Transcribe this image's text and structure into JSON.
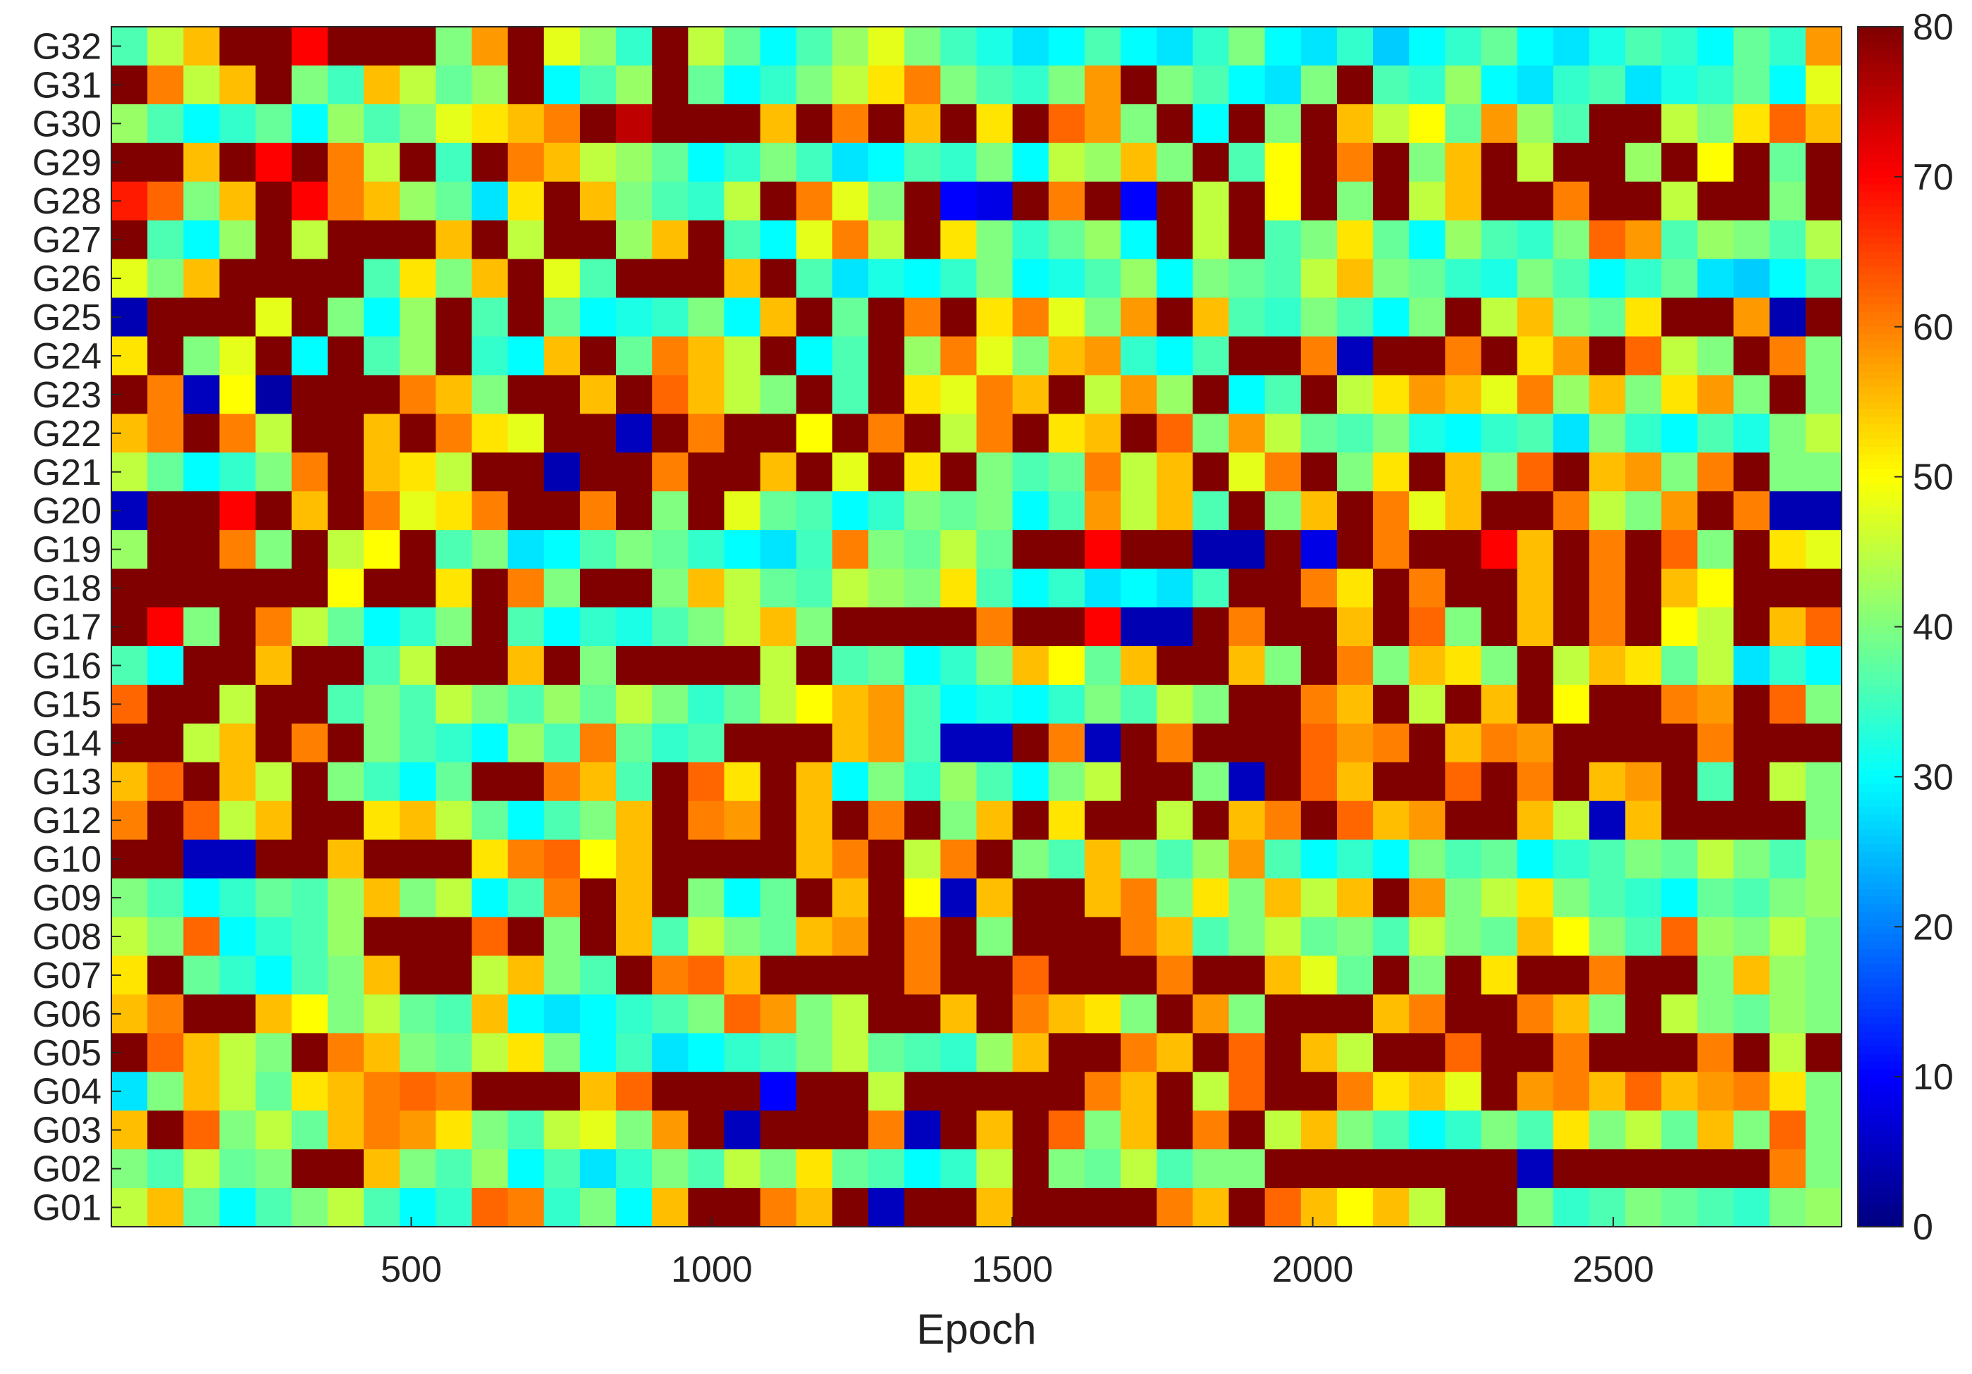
{
  "chart_data": {
    "type": "heatmap",
    "title": "",
    "xlabel": "Epoch",
    "ylabel": "",
    "xlim": [
      1,
      2880
    ],
    "x_ticks": [
      500,
      1000,
      1500,
      2000,
      2500
    ],
    "x_tick_labels": [
      "500",
      "1000",
      "1500",
      "2000",
      "2500"
    ],
    "rows": [
      "G32",
      "G31",
      "G30",
      "G29",
      "G28",
      "G27",
      "G26",
      "G25",
      "G24",
      "G23",
      "G22",
      "G21",
      "G20",
      "G19",
      "G18",
      "G17",
      "G16",
      "G15",
      "G14",
      "G13",
      "G12",
      "G10",
      "G09",
      "G08",
      "G07",
      "G06",
      "G05",
      "G04",
      "G03",
      "G02",
      "G01"
    ],
    "colorbar": {
      "colormap": "jet",
      "min": 0,
      "max": 80,
      "ticks": [
        0,
        10,
        20,
        30,
        40,
        50,
        60,
        70,
        80
      ],
      "tick_labels": [
        "0",
        "10",
        "20",
        "30",
        "40",
        "50",
        "60",
        "70",
        "80"
      ]
    },
    "value_note": "Elevation-like values per satellite per epoch; cells shown as column segments, values approximate (0 to 80)",
    "segments_per_row": 48,
    "row_values": {
      "G32": [
        36,
        45,
        55,
        80,
        80,
        70,
        80,
        80,
        80,
        40,
        58,
        80,
        48,
        42,
        34,
        80,
        45,
        38,
        30,
        36,
        42,
        48,
        40,
        35,
        32,
        28,
        30,
        36,
        30,
        28,
        34,
        40,
        30,
        28,
        34,
        26,
        30,
        34,
        38,
        30,
        28,
        32,
        36,
        34,
        30,
        38,
        34,
        58
      ],
      "G31": [
        80,
        60,
        45,
        55,
        80,
        40,
        35,
        55,
        45,
        38,
        42,
        80,
        30,
        36,
        42,
        80,
        38,
        30,
        34,
        40,
        45,
        52,
        60,
        40,
        36,
        34,
        40,
        58,
        80,
        40,
        36,
        30,
        28,
        40,
        80,
        36,
        34,
        42,
        30,
        28,
        34,
        36,
        28,
        32,
        34,
        38,
        30,
        48
      ],
      "G30": [
        42,
        36,
        30,
        34,
        38,
        30,
        42,
        36,
        40,
        48,
        52,
        55,
        60,
        80,
        75,
        80,
        80,
        80,
        55,
        80,
        60,
        80,
        55,
        80,
        52,
        80,
        62,
        58,
        40,
        80,
        30,
        80,
        40,
        80,
        55,
        45,
        50,
        38,
        58,
        42,
        36,
        80,
        80,
        45,
        40,
        52,
        62,
        55
      ],
      "G29": [
        80,
        80,
        55,
        80,
        70,
        80,
        60,
        45,
        80,
        35,
        80,
        60,
        55,
        45,
        42,
        38,
        30,
        34,
        40,
        35,
        28,
        30,
        36,
        34,
        40,
        30,
        45,
        42,
        55,
        40,
        80,
        36,
        50,
        80,
        60,
        80,
        40,
        55,
        80,
        45,
        80,
        80,
        42,
        80,
        50,
        80,
        38,
        80
      ],
      "G28": [
        68,
        62,
        40,
        55,
        80,
        70,
        60,
        55,
        42,
        38,
        28,
        52,
        80,
        55,
        40,
        36,
        34,
        45,
        80,
        60,
        48,
        40,
        80,
        10,
        8,
        80,
        60,
        80,
        10,
        80,
        45,
        80,
        50,
        80,
        40,
        80,
        45,
        55,
        80,
        80,
        60,
        80,
        80,
        45,
        80,
        80,
        40,
        80
      ],
      "G27": [
        80,
        36,
        30,
        42,
        80,
        45,
        80,
        80,
        80,
        55,
        80,
        45,
        80,
        80,
        42,
        55,
        80,
        36,
        30,
        48,
        60,
        45,
        80,
        52,
        40,
        34,
        38,
        42,
        30,
        80,
        45,
        80,
        36,
        40,
        52,
        38,
        30,
        42,
        36,
        34,
        40,
        62,
        58,
        36,
        42,
        40,
        36,
        44
      ],
      "G26": [
        48,
        40,
        55,
        80,
        80,
        80,
        80,
        36,
        52,
        40,
        55,
        80,
        48,
        36,
        80,
        80,
        80,
        55,
        80,
        36,
        28,
        32,
        30,
        34,
        40,
        30,
        32,
        36,
        42,
        30,
        40,
        38,
        36,
        45,
        55,
        40,
        38,
        34,
        32,
        40,
        36,
        30,
        34,
        38,
        28,
        26,
        30,
        36
      ],
      "G25": [
        4,
        80,
        80,
        80,
        48,
        80,
        40,
        30,
        42,
        80,
        36,
        80,
        38,
        30,
        32,
        34,
        40,
        30,
        55,
        80,
        38,
        80,
        60,
        80,
        52,
        60,
        48,
        40,
        58,
        80,
        55,
        36,
        34,
        40,
        36,
        30,
        40,
        80,
        45,
        55,
        40,
        38,
        52,
        80,
        80,
        58,
        4,
        80
      ],
      "G24": [
        52,
        80,
        40,
        48,
        80,
        30,
        80,
        36,
        42,
        80,
        34,
        30,
        55,
        80,
        38,
        60,
        55,
        45,
        80,
        30,
        36,
        80,
        42,
        60,
        48,
        40,
        55,
        58,
        34,
        30,
        36,
        80,
        80,
        60,
        5,
        80,
        80,
        60,
        80,
        52,
        58,
        80,
        62,
        45,
        40,
        80,
        60,
        40
      ],
      "G23": [
        80,
        60,
        5,
        50,
        3,
        80,
        80,
        80,
        60,
        55,
        40,
        80,
        80,
        55,
        80,
        62,
        55,
        45,
        40,
        80,
        36,
        80,
        52,
        48,
        60,
        55,
        80,
        45,
        58,
        42,
        80,
        30,
        36,
        80,
        45,
        52,
        58,
        55,
        48,
        60,
        42,
        55,
        40,
        52,
        58,
        40,
        80,
        40
      ],
      "G22": [
        55,
        60,
        80,
        60,
        45,
        80,
        80,
        55,
        80,
        60,
        52,
        48,
        80,
        80,
        5,
        80,
        60,
        80,
        80,
        50,
        80,
        60,
        80,
        45,
        60,
        80,
        52,
        55,
        80,
        62,
        40,
        58,
        45,
        38,
        36,
        40,
        32,
        30,
        34,
        36,
        28,
        40,
        34,
        30,
        36,
        32,
        40,
        45
      ],
      "G21": [
        45,
        38,
        30,
        34,
        40,
        60,
        80,
        55,
        52,
        45,
        80,
        80,
        4,
        80,
        80,
        60,
        80,
        80,
        55,
        80,
        48,
        80,
        52,
        80,
        40,
        36,
        38,
        60,
        45,
        55,
        80,
        48,
        60,
        80,
        40,
        52,
        80,
        55,
        40,
        62,
        80,
        55,
        58,
        40,
        60,
        80,
        40,
        40
      ],
      "G20": [
        5,
        80,
        80,
        70,
        80,
        55,
        80,
        60,
        48,
        52,
        60,
        80,
        80,
        60,
        80,
        40,
        80,
        48,
        38,
        36,
        30,
        34,
        40,
        38,
        40,
        30,
        36,
        58,
        45,
        55,
        36,
        80,
        40,
        55,
        80,
        60,
        48,
        55,
        80,
        80,
        60,
        45,
        40,
        58,
        80,
        60,
        4,
        4
      ],
      "G19": [
        42,
        80,
        80,
        60,
        40,
        80,
        45,
        50,
        80,
        36,
        40,
        28,
        30,
        36,
        40,
        38,
        34,
        30,
        28,
        35,
        60,
        40,
        38,
        45,
        38,
        80,
        80,
        70,
        80,
        80,
        4,
        4,
        80,
        8,
        80,
        60,
        80,
        80,
        70,
        55,
        80,
        60,
        80,
        62,
        40,
        80,
        52,
        48
      ],
      "G18": [
        80,
        80,
        80,
        80,
        80,
        80,
        50,
        80,
        80,
        52,
        80,
        60,
        40,
        80,
        80,
        40,
        55,
        45,
        38,
        36,
        45,
        42,
        40,
        52,
        36,
        30,
        34,
        28,
        30,
        28,
        35,
        80,
        80,
        60,
        52,
        80,
        60,
        80,
        80,
        55,
        80,
        60,
        80,
        55,
        50,
        80,
        80,
        80
      ],
      "G17": [
        80,
        70,
        40,
        80,
        60,
        45,
        38,
        30,
        34,
        40,
        80,
        36,
        30,
        34,
        32,
        36,
        40,
        45,
        55,
        40,
        80,
        80,
        80,
        80,
        60,
        80,
        80,
        70,
        4,
        4,
        80,
        60,
        80,
        80,
        55,
        80,
        62,
        40,
        80,
        55,
        80,
        60,
        80,
        50,
        45,
        80,
        55,
        62
      ],
      "G16": [
        36,
        30,
        80,
        80,
        55,
        80,
        80,
        36,
        45,
        80,
        80,
        55,
        80,
        40,
        80,
        80,
        80,
        80,
        45,
        80,
        36,
        38,
        30,
        34,
        40,
        55,
        50,
        38,
        55,
        80,
        80,
        55,
        40,
        80,
        60,
        40,
        55,
        52,
        40,
        80,
        45,
        55,
        52,
        38,
        45,
        28,
        34,
        30
      ],
      "G15": [
        62,
        80,
        80,
        45,
        80,
        80,
        36,
        40,
        36,
        45,
        40,
        36,
        42,
        38,
        45,
        40,
        34,
        38,
        45,
        50,
        55,
        58,
        36,
        30,
        32,
        30,
        34,
        40,
        36,
        45,
        40,
        80,
        80,
        60,
        55,
        80,
        45,
        80,
        55,
        80,
        50,
        80,
        80,
        60,
        58,
        80,
        62,
        40
      ],
      "G14": [
        80,
        80,
        45,
        55,
        80,
        60,
        80,
        40,
        36,
        34,
        30,
        42,
        36,
        60,
        38,
        34,
        36,
        80,
        80,
        80,
        55,
        58,
        36,
        5,
        5,
        80,
        60,
        5,
        80,
        60,
        80,
        80,
        80,
        62,
        58,
        60,
        80,
        55,
        60,
        58,
        80,
        80,
        80,
        80,
        60,
        80,
        80,
        80
      ],
      "G13": [
        55,
        62,
        80,
        55,
        45,
        80,
        40,
        35,
        30,
        38,
        80,
        80,
        60,
        55,
        36,
        80,
        62,
        52,
        80,
        55,
        30,
        40,
        34,
        42,
        36,
        30,
        40,
        45,
        80,
        80,
        40,
        5,
        80,
        62,
        55,
        80,
        80,
        62,
        80,
        60,
        80,
        55,
        58,
        80,
        36,
        80,
        45,
        40
      ],
      "G12": [
        60,
        80,
        62,
        45,
        55,
        80,
        80,
        52,
        55,
        45,
        38,
        30,
        36,
        40,
        55,
        80,
        60,
        58,
        80,
        55,
        80,
        60,
        80,
        40,
        55,
        80,
        52,
        80,
        80,
        45,
        80,
        55,
        60,
        80,
        62,
        55,
        58,
        80,
        80,
        55,
        45,
        5,
        55,
        80,
        80,
        80,
        80,
        40
      ],
      "G10": [
        80,
        80,
        5,
        5,
        80,
        80,
        55,
        80,
        80,
        80,
        52,
        60,
        62,
        50,
        55,
        80,
        80,
        80,
        80,
        55,
        60,
        80,
        45,
        60,
        80,
        40,
        36,
        55,
        40,
        36,
        42,
        58,
        36,
        30,
        34,
        30,
        40,
        36,
        38,
        30,
        34,
        36,
        40,
        38,
        45,
        40,
        36,
        42
      ],
      "G09": [
        40,
        36,
        30,
        34,
        38,
        36,
        42,
        55,
        40,
        45,
        30,
        36,
        60,
        80,
        55,
        80,
        40,
        30,
        38,
        80,
        55,
        80,
        50,
        5,
        55,
        80,
        80,
        55,
        60,
        40,
        52,
        40,
        55,
        45,
        55,
        80,
        58,
        40,
        45,
        52,
        40,
        36,
        34,
        30,
        38,
        36,
        40,
        42
      ],
      "G08": [
        45,
        40,
        62,
        30,
        34,
        36,
        42,
        80,
        80,
        80,
        62,
        80,
        40,
        80,
        55,
        36,
        45,
        40,
        38,
        55,
        58,
        80,
        60,
        80,
        40,
        80,
        80,
        80,
        60,
        55,
        36,
        40,
        45,
        38,
        40,
        36,
        45,
        40,
        38,
        55,
        50,
        40,
        36,
        62,
        42,
        40,
        45,
        40
      ],
      "G07": [
        52,
        80,
        38,
        34,
        30,
        36,
        40,
        55,
        80,
        80,
        45,
        55,
        40,
        36,
        80,
        60,
        62,
        55,
        80,
        80,
        80,
        80,
        60,
        80,
        80,
        62,
        80,
        80,
        80,
        60,
        80,
        80,
        55,
        48,
        38,
        80,
        40,
        80,
        52,
        80,
        80,
        60,
        80,
        80,
        40,
        55,
        42,
        40
      ],
      "G06": [
        55,
        60,
        80,
        80,
        55,
        50,
        40,
        45,
        38,
        36,
        55,
        30,
        28,
        30,
        34,
        36,
        40,
        62,
        58,
        40,
        45,
        80,
        80,
        55,
        80,
        60,
        55,
        52,
        40,
        80,
        58,
        40,
        80,
        80,
        80,
        55,
        60,
        80,
        80,
        60,
        55,
        40,
        80,
        45,
        40,
        38,
        42,
        40
      ],
      "G05": [
        80,
        62,
        55,
        45,
        40,
        80,
        60,
        55,
        40,
        38,
        45,
        52,
        40,
        30,
        35,
        28,
        30,
        34,
        36,
        40,
        45,
        38,
        36,
        34,
        42,
        55,
        80,
        80,
        60,
        55,
        80,
        62,
        80,
        55,
        45,
        80,
        80,
        62,
        80,
        80,
        60,
        80,
        80,
        80,
        60,
        80,
        45,
        80
      ],
      "G04": [
        28,
        40,
        55,
        45,
        38,
        52,
        55,
        60,
        62,
        60,
        80,
        80,
        80,
        55,
        62,
        80,
        80,
        80,
        10,
        80,
        80,
        45,
        80,
        80,
        80,
        80,
        80,
        60,
        55,
        80,
        45,
        62,
        80,
        80,
        60,
        52,
        55,
        48,
        80,
        58,
        60,
        55,
        62,
        55,
        58,
        60,
        52,
        40
      ],
      "G03": [
        55,
        80,
        62,
        40,
        45,
        38,
        55,
        60,
        58,
        52,
        40,
        36,
        45,
        48,
        40,
        58,
        80,
        5,
        80,
        80,
        80,
        60,
        5,
        80,
        55,
        80,
        62,
        40,
        55,
        80,
        60,
        80,
        45,
        55,
        40,
        36,
        30,
        34,
        40,
        36,
        52,
        40,
        45,
        38,
        55,
        40,
        62,
        40
      ],
      "G02": [
        40,
        36,
        45,
        38,
        40,
        80,
        80,
        55,
        40,
        36,
        42,
        30,
        36,
        28,
        34,
        40,
        36,
        45,
        40,
        52,
        38,
        36,
        30,
        34,
        45,
        80,
        40,
        38,
        45,
        36,
        40,
        40,
        80,
        80,
        80,
        80,
        80,
        80,
        80,
        5,
        80,
        80,
        80,
        80,
        80,
        80,
        60,
        40
      ],
      "G01": [
        45,
        55,
        38,
        30,
        36,
        40,
        45,
        36,
        30,
        34,
        62,
        60,
        34,
        40,
        30,
        55,
        80,
        80,
        60,
        55,
        80,
        5,
        80,
        80,
        55,
        80,
        80,
        80,
        80,
        60,
        55,
        80,
        62,
        55,
        50,
        55,
        45,
        80,
        80,
        40,
        34,
        36,
        40,
        38,
        36,
        34,
        40,
        42
      ]
    }
  }
}
